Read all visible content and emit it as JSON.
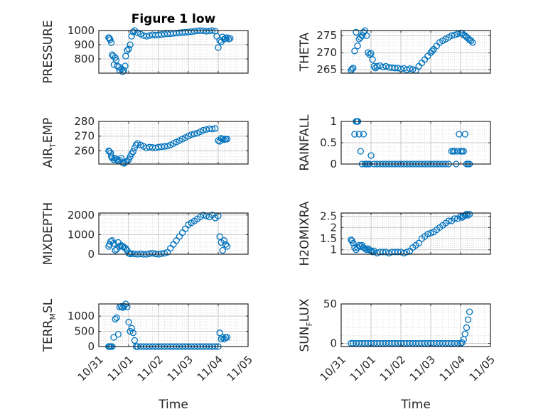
{
  "figure": {
    "title": "Figure 1 low",
    "marker_color": "#0072BD"
  },
  "chart_data": [
    {
      "type": "scatter",
      "title": "Figure 1 low",
      "ylabel": "PRESSURE",
      "ylabel_sub": null,
      "ylim": [
        700,
        1000
      ],
      "yticks": [
        800,
        900,
        1000
      ],
      "ytick_labels": [
        "800",
        "900",
        "1000"
      ],
      "xlabel": "",
      "grid": true,
      "minor_grid": true,
      "x": [
        0.33,
        0.36,
        0.38,
        0.42,
        0.45,
        0.48,
        0.51,
        0.55,
        0.58,
        0.62,
        0.67,
        0.7,
        0.76,
        0.8,
        0.84,
        0.88,
        0.9,
        0.95,
        1.0,
        1.05,
        1.1,
        1.15,
        1.2,
        1.3,
        1.4,
        1.5,
        1.6,
        1.7,
        1.8,
        1.9,
        2.0,
        2.1,
        2.2,
        2.3,
        2.4,
        2.5,
        2.6,
        2.7,
        2.8,
        2.9,
        3.0,
        3.1,
        3.2,
        3.3,
        3.4,
        3.5,
        3.6,
        3.7,
        3.8,
        3.9,
        3.95,
        4.0,
        4.05,
        4.1,
        4.15,
        4.2,
        4.25,
        4.3,
        4.35,
        4.4
      ],
      "y": [
        950,
        945,
        935,
        915,
        830,
        820,
        760,
        810,
        790,
        750,
        745,
        720,
        730,
        710,
        720,
        750,
        820,
        860,
        870,
        900,
        960,
        990,
        1000,
        985,
        975,
        965,
        960,
        965,
        970,
        968,
        970,
        972,
        975,
        977,
        978,
        980,
        982,
        984,
        986,
        988,
        990,
        992,
        995,
        998,
        1000,
        998,
        995,
        997,
        1000,
        995,
        960,
        880,
        930,
        920,
        955,
        940,
        945,
        950,
        940,
        945
      ]
    },
    {
      "type": "scatter",
      "ylabel": "THETA",
      "ylabel_sub": null,
      "ylim": [
        264,
        276.5
      ],
      "yticks": [
        265,
        270,
        275
      ],
      "ytick_labels": [
        "265",
        "270",
        "275"
      ],
      "xlabel": "",
      "grid": true,
      "minor_grid": true,
      "x": [
        0.33,
        0.36,
        0.4,
        0.45,
        0.5,
        0.55,
        0.6,
        0.65,
        0.7,
        0.75,
        0.8,
        0.85,
        0.9,
        0.95,
        1.0,
        1.05,
        1.1,
        1.15,
        1.2,
        1.3,
        1.4,
        1.5,
        1.6,
        1.7,
        1.8,
        1.9,
        2.0,
        2.1,
        2.2,
        2.3,
        2.4,
        2.5,
        2.6,
        2.7,
        2.8,
        2.9,
        3.0,
        3.05,
        3.1,
        3.2,
        3.3,
        3.4,
        3.5,
        3.6,
        3.7,
        3.8,
        3.9,
        4.0,
        4.05,
        4.1,
        4.15,
        4.2,
        4.25,
        4.3,
        4.35,
        4.4
      ],
      "y": [
        264.8,
        265.2,
        265.5,
        270.5,
        276,
        272,
        274,
        274.5,
        275,
        276,
        276.5,
        275,
        270,
        269.5,
        269.8,
        268,
        266,
        265.5,
        266,
        266.2,
        265.8,
        266,
        265.7,
        265.6,
        265.5,
        265.5,
        265.2,
        265.4,
        265,
        265.3,
        265.1,
        264.8,
        266,
        267,
        268,
        269,
        270,
        270.5,
        271,
        272,
        273,
        273.5,
        274,
        274.5,
        275,
        275.2,
        275.5,
        275.8,
        275.7,
        275.2,
        275,
        274.6,
        274.2,
        273.8,
        273.5,
        273
      ]
    },
    {
      "type": "scatter",
      "ylabel": "AIR",
      "ylabel_sub": "TEMP",
      "ylim": [
        251,
        280
      ],
      "yticks": [
        260,
        270,
        280
      ],
      "ytick_labels": [
        "260",
        "270",
        "280"
      ],
      "xlabel": "",
      "grid": true,
      "minor_grid": true,
      "x": [
        0.33,
        0.36,
        0.4,
        0.42,
        0.45,
        0.5,
        0.55,
        0.6,
        0.65,
        0.7,
        0.75,
        0.8,
        0.85,
        0.9,
        0.95,
        1.0,
        1.05,
        1.1,
        1.15,
        1.2,
        1.25,
        1.3,
        1.4,
        1.5,
        1.6,
        1.7,
        1.8,
        1.9,
        2.0,
        2.1,
        2.2,
        2.3,
        2.4,
        2.5,
        2.6,
        2.7,
        2.8,
        2.9,
        3.0,
        3.1,
        3.2,
        3.3,
        3.4,
        3.5,
        3.6,
        3.7,
        3.8,
        3.9,
        4.0,
        4.05,
        4.1,
        4.15,
        4.2,
        4.25,
        4.3
      ],
      "y": [
        260,
        259.5,
        258.5,
        256,
        255,
        254,
        255,
        254,
        253,
        253.5,
        255,
        252,
        251.5,
        252.5,
        253,
        254,
        256,
        258,
        259.5,
        262,
        264,
        265,
        264,
        263,
        262,
        262.5,
        262.3,
        262,
        262.5,
        262.8,
        263,
        263.2,
        264,
        265,
        266,
        267,
        268,
        269,
        270,
        271,
        271.5,
        272,
        273,
        274,
        274.5,
        275,
        274.8,
        275.2,
        267,
        266.5,
        268.5,
        268,
        267.5,
        268,
        268
      ]
    },
    {
      "type": "scatter",
      "ylabel": "RAINFALL",
      "ylabel_sub": null,
      "ylim": [
        0,
        1
      ],
      "yticks": [
        0,
        0.5,
        1
      ],
      "ytick_labels": [
        "0",
        "0.5",
        "1"
      ],
      "xlabel": "",
      "grid": true,
      "minor_grid": true,
      "x": [
        0.45,
        0.5,
        0.53,
        0.56,
        0.6,
        0.65,
        0.7,
        0.75,
        0.8,
        0.85,
        0.9,
        0.95,
        1.0,
        1.1,
        1.2,
        1.3,
        1.4,
        1.5,
        1.6,
        1.7,
        1.8,
        1.9,
        2.0,
        2.1,
        2.2,
        2.3,
        2.4,
        2.5,
        2.6,
        2.7,
        2.8,
        2.9,
        3.0,
        3.1,
        3.2,
        3.3,
        3.4,
        3.5,
        3.6,
        3.7,
        3.75,
        3.8,
        3.85,
        3.9,
        3.95,
        4.0,
        4.05,
        4.1,
        4.15,
        4.2,
        4.25,
        4.3
      ],
      "y": [
        0.7,
        1,
        1,
        1,
        0.7,
        0.3,
        0,
        0.7,
        0,
        0,
        0,
        0,
        0.2,
        0,
        0,
        0,
        0,
        0,
        0,
        0,
        0,
        0,
        0,
        0,
        0,
        0,
        0,
        0,
        0,
        0,
        0,
        0,
        0,
        0,
        0,
        0,
        0,
        0,
        0,
        0.3,
        0.3,
        0.3,
        0,
        0.3,
        0.7,
        0.3,
        0.3,
        0.3,
        0.7,
        0,
        0,
        0
      ]
    },
    {
      "type": "scatter",
      "ylabel": "MIXDEPTH",
      "ylabel_sub": null,
      "ylim": [
        0,
        2100
      ],
      "yticks": [
        0,
        1000,
        2000
      ],
      "ytick_labels": [
        "0",
        "1000",
        "2000"
      ],
      "xlabel": "",
      "grid": true,
      "minor_grid": true,
      "x": [
        0.33,
        0.36,
        0.4,
        0.45,
        0.5,
        0.55,
        0.6,
        0.65,
        0.7,
        0.75,
        0.8,
        0.85,
        0.9,
        0.95,
        1.0,
        1.05,
        1.1,
        1.2,
        1.3,
        1.4,
        1.5,
        1.6,
        1.7,
        1.8,
        1.9,
        2.0,
        2.1,
        2.2,
        2.3,
        2.4,
        2.5,
        2.6,
        2.7,
        2.8,
        2.9,
        3.0,
        3.1,
        3.2,
        3.3,
        3.4,
        3.5,
        3.6,
        3.7,
        3.8,
        3.9,
        4.0,
        4.05,
        4.1,
        4.15,
        4.2,
        4.25,
        4.3
      ],
      "y": [
        400,
        500,
        650,
        700,
        550,
        200,
        250,
        600,
        400,
        450,
        400,
        350,
        300,
        200,
        50,
        20,
        30,
        10,
        0,
        20,
        0,
        0,
        30,
        50,
        20,
        0,
        30,
        50,
        100,
        300,
        500,
        700,
        900,
        1100,
        1300,
        1500,
        1600,
        1700,
        1800,
        1900,
        2000,
        1950,
        1900,
        2000,
        1850,
        1950,
        900,
        600,
        200,
        700,
        500,
        400
      ]
    },
    {
      "type": "scatter",
      "ylabel": "H2OMIXRA",
      "ylabel_sub": null,
      "ylim": [
        0.8,
        2.65
      ],
      "yticks": [
        1,
        1.5,
        2,
        2.5
      ],
      "ytick_labels": [
        "1",
        "1.5",
        "2",
        "2.5"
      ],
      "xlabel": "",
      "grid": true,
      "minor_grid": true,
      "x": [
        0.33,
        0.36,
        0.4,
        0.45,
        0.5,
        0.55,
        0.6,
        0.65,
        0.7,
        0.75,
        0.8,
        0.85,
        0.9,
        0.95,
        1.0,
        1.05,
        1.1,
        1.2,
        1.3,
        1.4,
        1.5,
        1.6,
        1.7,
        1.8,
        1.9,
        2.0,
        2.1,
        2.2,
        2.3,
        2.4,
        2.5,
        2.6,
        2.7,
        2.8,
        2.9,
        3.0,
        3.1,
        3.2,
        3.3,
        3.4,
        3.5,
        3.6,
        3.7,
        3.8,
        3.9,
        4.0,
        4.05,
        4.1,
        4.15,
        4.2,
        4.25,
        4.3
      ],
      "y": [
        1.45,
        1.4,
        1.3,
        1.1,
        1.0,
        1.1,
        1.2,
        1.15,
        1.2,
        1.1,
        1.05,
        1.0,
        1.05,
        1.0,
        0.95,
        0.9,
        0.95,
        0.85,
        0.9,
        0.9,
        0.9,
        0.85,
        0.9,
        0.9,
        0.9,
        0.9,
        0.85,
        0.9,
        0.95,
        1.1,
        1.2,
        1.3,
        1.5,
        1.6,
        1.7,
        1.75,
        1.8,
        1.9,
        2.0,
        2.1,
        2.2,
        2.3,
        2.3,
        2.4,
        2.4,
        2.5,
        2.45,
        2.5,
        2.55,
        2.6,
        2.55,
        2.6
      ]
    },
    {
      "type": "scatter",
      "ylabel": "TERR",
      "ylabel_sub": "MSL",
      "ylim": [
        0,
        1400
      ],
      "yticks": [
        0,
        500,
        1000
      ],
      "ytick_labels": [
        "0",
        "500",
        "1000"
      ],
      "xlabel": "Time",
      "grid": true,
      "minor_grid": true,
      "xticks": [
        0,
        1,
        2,
        3,
        4,
        5
      ],
      "xtick_labels": [
        "10/31",
        "11/01",
        "11/02",
        "11/03",
        "11/04",
        "11/05"
      ],
      "x": [
        0.33,
        0.36,
        0.4,
        0.45,
        0.5,
        0.55,
        0.6,
        0.65,
        0.7,
        0.75,
        0.8,
        0.85,
        0.9,
        0.95,
        1.0,
        1.05,
        1.1,
        1.15,
        1.2,
        1.25,
        1.3,
        1.4,
        1.5,
        1.6,
        1.7,
        1.8,
        1.9,
        2.0,
        2.1,
        2.2,
        2.3,
        2.4,
        2.5,
        2.6,
        2.7,
        2.8,
        2.9,
        3.0,
        3.1,
        3.2,
        3.3,
        3.4,
        3.5,
        3.6,
        3.7,
        3.8,
        3.9,
        4.0,
        4.05,
        4.1,
        4.15,
        4.2,
        4.25,
        4.3
      ],
      "y": [
        0,
        0,
        0,
        0,
        300,
        900,
        950,
        400,
        1300,
        1320,
        1280,
        1320,
        1400,
        1300,
        800,
        500,
        600,
        450,
        200,
        0,
        0,
        0,
        0,
        0,
        0,
        0,
        0,
        0,
        0,
        0,
        0,
        0,
        0,
        0,
        0,
        0,
        0,
        0,
        0,
        0,
        0,
        0,
        0,
        0,
        0,
        0,
        0,
        0,
        450,
        250,
        300,
        250,
        300,
        300
      ]
    },
    {
      "type": "scatter",
      "ylabel": "SUN",
      "ylabel_sub": "FLUX",
      "ylim": [
        -4,
        50
      ],
      "yticks": [
        0,
        50
      ],
      "ytick_labels": [
        "0",
        "50"
      ],
      "xlabel": "Time",
      "grid": true,
      "minor_grid": true,
      "xticks": [
        0,
        1,
        2,
        3,
        4,
        5
      ],
      "xtick_labels": [
        "10/31",
        "11/01",
        "11/02",
        "11/03",
        "11/04",
        "11/05"
      ],
      "x": [
        0.33,
        0.4,
        0.5,
        0.6,
        0.7,
        0.8,
        0.9,
        1.0,
        1.1,
        1.2,
        1.3,
        1.4,
        1.5,
        1.6,
        1.7,
        1.8,
        1.9,
        2.0,
        2.1,
        2.2,
        2.3,
        2.4,
        2.5,
        2.6,
        2.7,
        2.8,
        2.9,
        3.0,
        3.1,
        3.2,
        3.3,
        3.4,
        3.5,
        3.6,
        3.7,
        3.8,
        3.9,
        4.0,
        4.05,
        4.1,
        4.15,
        4.2,
        4.25,
        4.3
      ],
      "y": [
        0,
        0,
        0,
        0,
        0,
        0,
        0,
        0,
        0,
        0,
        0,
        0,
        0,
        0,
        0,
        0,
        0,
        0,
        0,
        0,
        0,
        0,
        0,
        0,
        0,
        0,
        0,
        0,
        0,
        0,
        0,
        0,
        0,
        0,
        0,
        0,
        0,
        0,
        1,
        5,
        12,
        20,
        30,
        40
      ]
    }
  ]
}
